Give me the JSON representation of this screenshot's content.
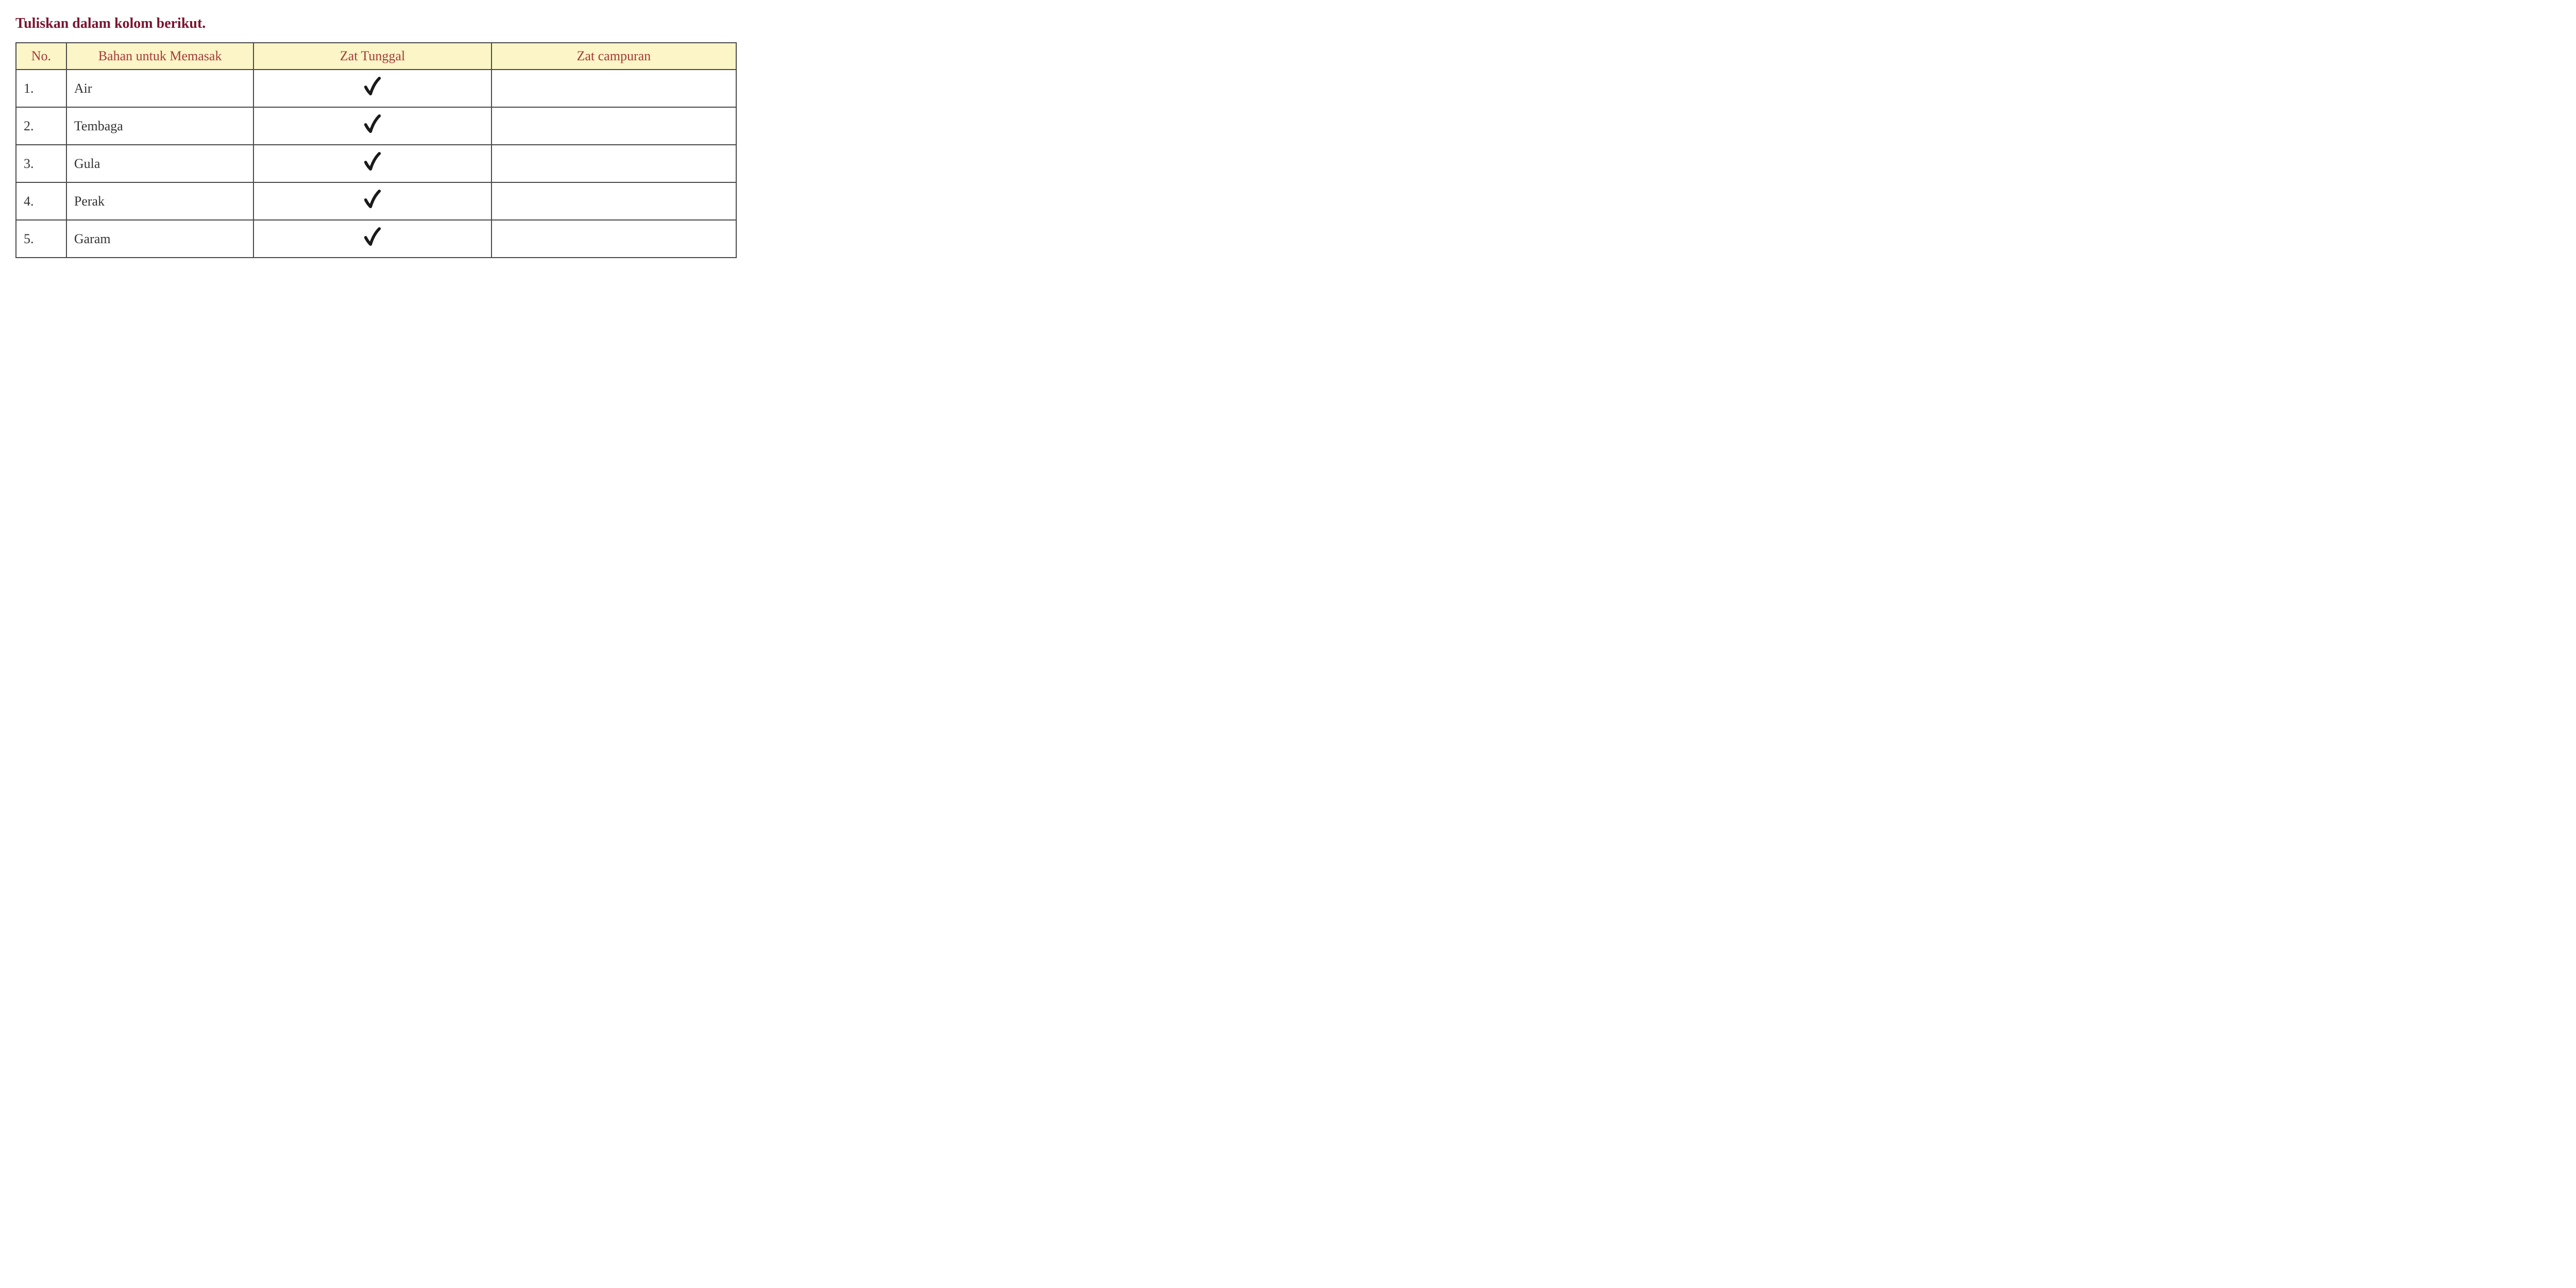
{
  "title": "Tuliskan dalam kolom berikut.",
  "table": {
    "headers": {
      "no": "No.",
      "bahan": "Bahan untuk Memasak",
      "tunggal": "Zat Tunggal",
      "campuran": "Zat campuran"
    },
    "rows": [
      {
        "no": "1.",
        "bahan": "Air",
        "tunggal": true,
        "campuran": false
      },
      {
        "no": "2.",
        "bahan": "Tembaga",
        "tunggal": true,
        "campuran": false
      },
      {
        "no": "3.",
        "bahan": "Gula",
        "tunggal": true,
        "campuran": false
      },
      {
        "no": "4.",
        "bahan": "Perak",
        "tunggal": true,
        "campuran": false
      },
      {
        "no": "5.",
        "bahan": "Garam",
        "tunggal": true,
        "campuran": false
      }
    ],
    "colors": {
      "header_bg": "#fbf5c7",
      "header_text": "#a73a3a",
      "title_text": "#7a1430",
      "border": "#4a4a4a",
      "cell_text": "#333333",
      "checkmark": "#1a1a1a"
    },
    "column_widths": {
      "no": "7%",
      "bahan": "26%",
      "tunggal": "33%",
      "campuran": "34%"
    }
  }
}
